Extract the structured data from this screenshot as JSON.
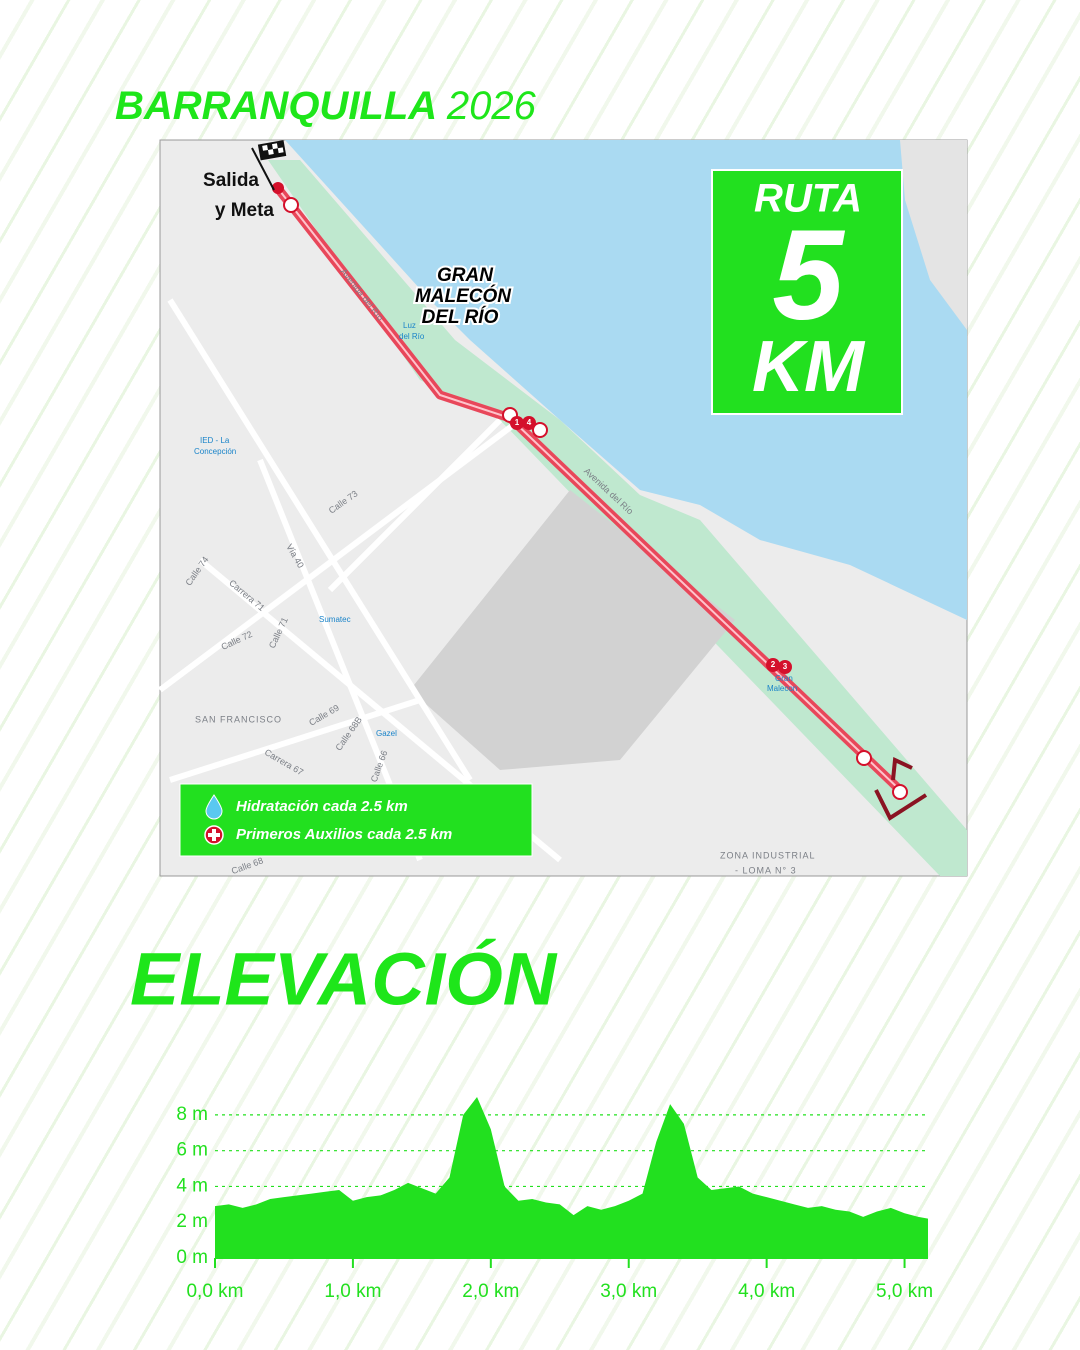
{
  "header": {
    "title": "BARRANQUILLA",
    "year": "2026"
  },
  "map": {
    "start_label": [
      "Salida",
      "y Meta"
    ],
    "landmark": [
      "GRAN",
      "MALECÓN",
      "DEL RÍO"
    ],
    "badge": {
      "line1": "RUTA",
      "distance": "5",
      "unit": "KM"
    },
    "legend": [
      "Hidratación cada 2.5 km",
      "Primeros Auxilios cada 2.5 km"
    ],
    "checkpoints": [
      "1",
      "4",
      "2",
      "3"
    ],
    "streets": [
      "Avenida del Río",
      "Avenida del Río",
      "IED - La",
      "Concepción",
      "Calle 73",
      "Vía 40",
      "Calle 74",
      "Carrera 71",
      "Calle 72",
      "Calle 71",
      "Sumatec",
      "SAN FRANCISCO",
      "Calle 69",
      "Calle 68B",
      "Gazel",
      "Carrera 67",
      "Calle 66",
      "Calle 68",
      "ZONA INDUSTRIAL",
      "- LOMA N° 3",
      "Gran",
      "Malecon",
      "Luz",
      "del Río"
    ]
  },
  "chart_data": {
    "type": "area",
    "title": "ELEVACIÓN",
    "color": "#22e01f",
    "x": [
      0,
      0.1,
      0.2,
      0.3,
      0.4,
      0.5,
      0.6,
      0.7,
      0.8,
      0.9,
      1.0,
      1.1,
      1.2,
      1.3,
      1.4,
      1.5,
      1.6,
      1.7,
      1.8,
      1.9,
      2.0,
      2.1,
      2.2,
      2.3,
      2.4,
      2.5,
      2.6,
      2.7,
      2.8,
      2.9,
      3.0,
      3.1,
      3.2,
      3.3,
      3.4,
      3.5,
      3.6,
      3.7,
      3.8,
      3.9,
      4.0,
      4.1,
      4.2,
      4.3,
      4.4,
      4.5,
      4.6,
      4.7,
      4.8,
      4.9,
      5.0,
      5.1,
      5.17
    ],
    "values": [
      2.9,
      3.0,
      2.8,
      3.0,
      3.3,
      3.4,
      3.5,
      3.6,
      3.7,
      3.8,
      3.2,
      3.4,
      3.5,
      3.8,
      4.2,
      3.9,
      3.6,
      4.5,
      8.0,
      9.0,
      7.2,
      4.0,
      3.2,
      3.3,
      3.1,
      3.0,
      2.4,
      2.9,
      2.7,
      2.9,
      3.2,
      3.6,
      6.5,
      8.6,
      7.5,
      4.5,
      3.8,
      3.9,
      4.0,
      3.6,
      3.4,
      3.2,
      3.0,
      2.8,
      2.9,
      2.7,
      2.6,
      2.3,
      2.6,
      2.8,
      2.5,
      2.3,
      2.2
    ],
    "xlim": [
      0,
      5.17
    ],
    "ylim": [
      0,
      9
    ],
    "xticks": [
      {
        "value": 0,
        "label": "0,0 km"
      },
      {
        "value": 1,
        "label": "1,0 km"
      },
      {
        "value": 2,
        "label": "2,0 km"
      },
      {
        "value": 3,
        "label": "3,0 km"
      },
      {
        "value": 4,
        "label": "4,0 km"
      },
      {
        "value": 5,
        "label": "5,0 km"
      }
    ],
    "yticks": [
      {
        "value": 0,
        "label": "0 m"
      },
      {
        "value": 2,
        "label": "2 m"
      },
      {
        "value": 4,
        "label": "4 m"
      },
      {
        "value": 6,
        "label": "6 m"
      },
      {
        "value": 8,
        "label": "8 m"
      }
    ],
    "grid": true
  }
}
